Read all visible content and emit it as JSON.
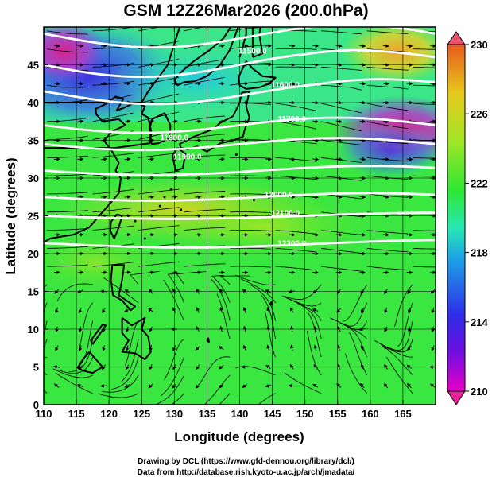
{
  "title": "GSM 12Z26Mar2026 (200.0hPa)",
  "x_axis": {
    "label": "Longitude (degrees)",
    "range": [
      110,
      170
    ],
    "ticks": [
      "110",
      "115",
      "120",
      "125",
      "130",
      "135",
      "140",
      "145",
      "150",
      "155",
      "160",
      "165"
    ]
  },
  "y_axis": {
    "label": "Latitude  (degrees)",
    "range": [
      0,
      50
    ],
    "ticks": [
      "0",
      "5",
      "10",
      "15",
      "20",
      "25",
      "30",
      "35",
      "40",
      "45"
    ]
  },
  "colorbar": {
    "range": [
      210,
      230
    ],
    "ticks": [
      "210",
      "214",
      "218",
      "222",
      "226",
      "230"
    ],
    "colors": [
      "#e600c8",
      "#2e2ee6",
      "#1ea0e6",
      "#28e6b4",
      "#2ee632",
      "#a0e628",
      "#e6c81e",
      "#e65a1e"
    ]
  },
  "contours": {
    "labels": [
      {
        "text": "11500.0",
        "lon": 142,
        "lat": 46.5
      },
      {
        "text": "11600.0",
        "lon": 147,
        "lat": 42
      },
      {
        "text": "11700.0",
        "lon": 148,
        "lat": 37.5
      },
      {
        "text": "11800.0",
        "lon": 130,
        "lat": 35
      },
      {
        "text": "11900.0",
        "lon": 132,
        "lat": 32.5
      },
      {
        "text": "12000.0",
        "lon": 146,
        "lat": 27.5
      },
      {
        "text": "12100.0",
        "lon": 147,
        "lat": 25
      },
      {
        "text": "12200.0",
        "lon": 148,
        "lat": 21
      }
    ]
  },
  "credits": {
    "line1": "Drawing by DCL (https://www.gfd-dennou.org/library/dcl/)",
    "line2": "Data from http://database.rish.kyoto-u.ac.jp/arch/jmadata/"
  }
}
